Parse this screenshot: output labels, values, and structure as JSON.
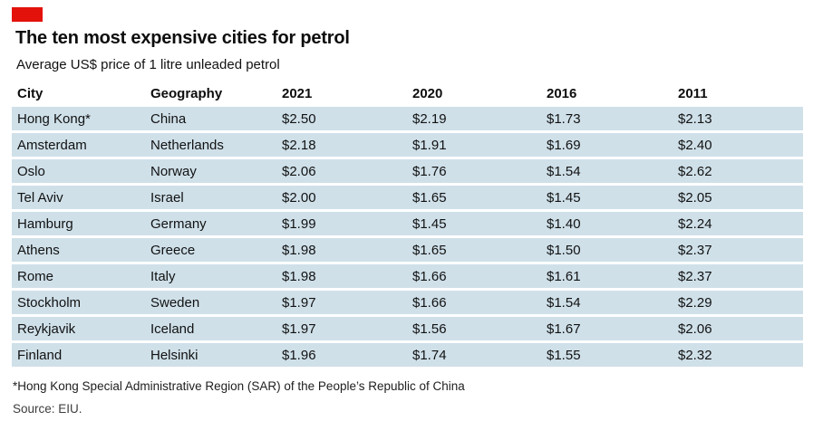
{
  "brand": {
    "accent_color": "#e3120b",
    "row_color": "#cfe0e9"
  },
  "header": {
    "title": "The ten most expensive cities for petrol",
    "subtitle": "Average US$ price of 1 litre unleaded petrol"
  },
  "chart_data": {
    "type": "table",
    "title": "The ten most expensive cities for petrol",
    "subtitle": "Average US$ price of 1 litre unleaded petrol",
    "columns": [
      "City",
      "Geography",
      "2021",
      "2020",
      "2016",
      "2011"
    ],
    "rows": [
      {
        "city": "Hong Kong*",
        "geography": "China",
        "y2021": "$2.50",
        "y2020": "$2.19",
        "y2016": "$1.73",
        "y2011": "$2.13"
      },
      {
        "city": "Amsterdam",
        "geography": "Netherlands",
        "y2021": "$2.18",
        "y2020": "$1.91",
        "y2016": "$1.69",
        "y2011": "$2.40"
      },
      {
        "city": "Oslo",
        "geography": "Norway",
        "y2021": "$2.06",
        "y2020": "$1.76",
        "y2016": "$1.54",
        "y2011": "$2.62"
      },
      {
        "city": "Tel Aviv",
        "geography": "Israel",
        "y2021": "$2.00",
        "y2020": "$1.65",
        "y2016": "$1.45",
        "y2011": "$2.05"
      },
      {
        "city": "Hamburg",
        "geography": "Germany",
        "y2021": "$1.99",
        "y2020": "$1.45",
        "y2016": "$1.40",
        "y2011": "$2.24"
      },
      {
        "city": "Athens",
        "geography": "Greece",
        "y2021": "$1.98",
        "y2020": "$1.65",
        "y2016": "$1.50",
        "y2011": "$2.37"
      },
      {
        "city": "Rome",
        "geography": "Italy",
        "y2021": "$1.98",
        "y2020": "$1.66",
        "y2016": "$1.61",
        "y2011": "$2.37"
      },
      {
        "city": "Stockholm",
        "geography": "Sweden",
        "y2021": "$1.97",
        "y2020": "$1.66",
        "y2016": "$1.54",
        "y2011": "$2.29"
      },
      {
        "city": "Reykjavik",
        "geography": "Iceland",
        "y2021": "$1.97",
        "y2020": "$1.56",
        "y2016": "$1.67",
        "y2011": "$2.06"
      },
      {
        "city": "Finland",
        "geography": "Helsinki",
        "y2021": "$1.96",
        "y2020": "$1.74",
        "y2016": "$1.55",
        "y2011": "$2.32"
      }
    ]
  },
  "footnote": "*Hong Kong Special Administrative Region (SAR) of the People’s Republic of China",
  "source": "Source: EIU."
}
